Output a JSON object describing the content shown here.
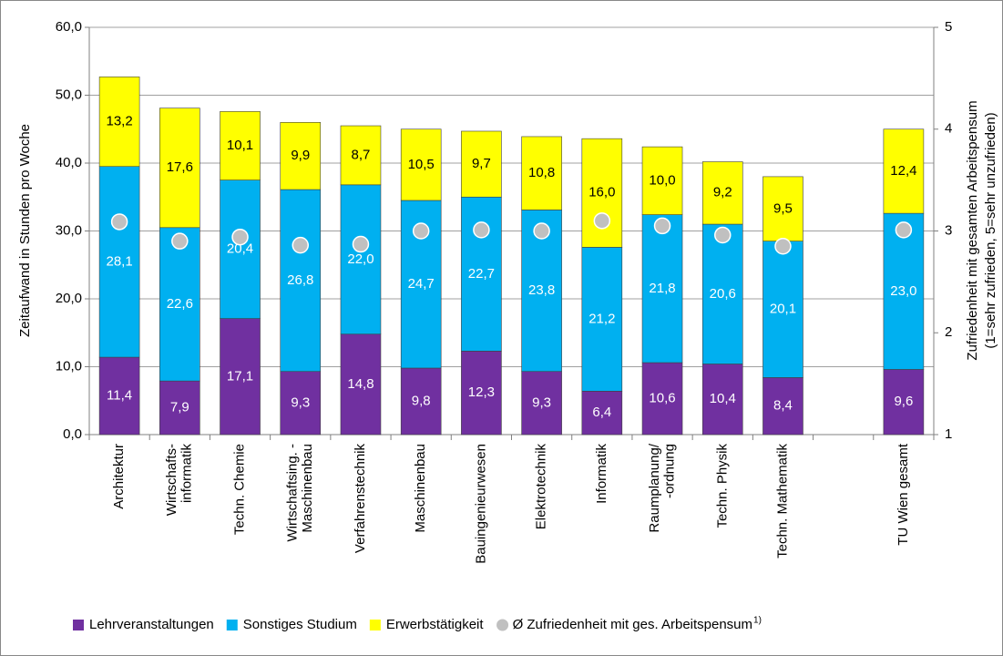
{
  "chart_data": {
    "type": "bar",
    "stacked": true,
    "ylabel": "Zeitaufwand in Stunden pro Woche",
    "y2label": [
      "Zufriedenheit mit gesamten Arbeitspensum",
      "(1=sehr zufrieden, 5=sehr unzufrieden)"
    ],
    "categories": [
      "Architektur",
      "Wirtschafts-\ninformatik",
      "Techn. Chemie",
      "Wirtschaftsing. -\nMaschinenbau",
      "Verfahrenstechnik",
      "Maschinenbau",
      "Bauingenieurwesen",
      "Elektrotechnik",
      "Informatik",
      "Raumplanung/\n-ordnung",
      "Techn. Physik",
      "Techn. Mathematik",
      null,
      "TU Wien gesamt"
    ],
    "series": [
      {
        "name": "Lehrveranstaltungen",
        "color": "#7030a0",
        "label_color": "#ffffff",
        "values": [
          11.4,
          7.9,
          17.1,
          9.3,
          14.8,
          9.8,
          12.3,
          9.3,
          6.4,
          10.6,
          10.4,
          8.4,
          null,
          9.6
        ],
        "value_labels": [
          "11,4",
          "7,9",
          "17,1",
          "9,3",
          "14,8",
          "9,8",
          "12,3",
          "9,3",
          "6,4",
          "10,6",
          "10,4",
          "8,4",
          null,
          "9,6"
        ]
      },
      {
        "name": "Sonstiges Studium",
        "color": "#00b0f0",
        "label_color": "#ffffff",
        "values": [
          28.1,
          22.6,
          20.4,
          26.8,
          22.0,
          24.7,
          22.7,
          23.8,
          21.2,
          21.8,
          20.6,
          20.1,
          null,
          23.0
        ],
        "value_labels": [
          "28,1",
          "22,6",
          "20,4",
          "26,8",
          "22,0",
          "24,7",
          "22,7",
          "23,8",
          "21,2",
          "21,8",
          "20,6",
          "20,1",
          null,
          "23,0"
        ]
      },
      {
        "name": "Erwerbstätigkeit",
        "color": "#ffff00",
        "label_color": "#000000",
        "values": [
          13.2,
          17.6,
          10.1,
          9.9,
          8.7,
          10.5,
          9.7,
          10.8,
          16.0,
          10.0,
          9.2,
          9.5,
          null,
          12.4
        ],
        "value_labels": [
          "13,2",
          "17,6",
          "10,1",
          "9,9",
          "8,7",
          "10,5",
          "9,7",
          "10,8",
          "16,0",
          "10,0",
          "9,2",
          "9,5",
          null,
          "12,4"
        ]
      },
      {
        "name": "Ø Zufriedenheit mit ges. Arbeitspensum",
        "note": "1)",
        "type": "scatter",
        "axis": "y2",
        "color": "#c0c0c0",
        "values": [
          3.09,
          2.9,
          2.94,
          2.86,
          2.87,
          3.0,
          3.01,
          3.0,
          3.1,
          3.05,
          2.96,
          2.85,
          null,
          3.01
        ]
      }
    ],
    "ylim": [
      0,
      60
    ],
    "yticks": [
      {
        "value": 0,
        "label": "0,0"
      },
      {
        "value": 10,
        "label": "10,0"
      },
      {
        "value": 20,
        "label": "20,0"
      },
      {
        "value": 30,
        "label": "30,0"
      },
      {
        "value": 40,
        "label": "40,0"
      },
      {
        "value": 50,
        "label": "50,0"
      },
      {
        "value": 60,
        "label": "60,0"
      }
    ],
    "y2lim": [
      1,
      5
    ],
    "y2ticks": [
      1,
      2,
      3,
      4,
      5
    ],
    "grid": true,
    "legend": "bottom"
  }
}
